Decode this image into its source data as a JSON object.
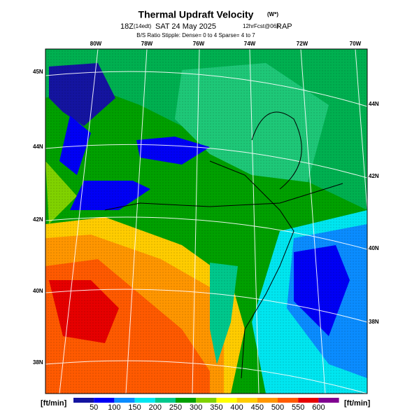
{
  "header": {
    "title": "Thermal Updraft Velocity",
    "unit": "(W*)",
    "run": "18Z",
    "local": "(14edt)",
    "date": "SAT 24 May 2025",
    "fcst": "12hrFcst@06z",
    "model": "RAP",
    "stipple": "B/S Ratio Stipple: Dense= 0 to 4  Sparse= 4 to 7"
  },
  "map": {
    "lon_labels": [
      "80W",
      "78W",
      "76W",
      "74W",
      "72W",
      "70W"
    ],
    "lat_labels_left": [
      "45N",
      "44N",
      "42N",
      "40N",
      "38N"
    ],
    "lat_labels_right": [
      "44N",
      "42N",
      "40N",
      "38N"
    ]
  },
  "legend": {
    "unit_left": "[ft/min]",
    "unit_right": "[ft/min]",
    "ticks": [
      50,
      100,
      150,
      200,
      250,
      300,
      350,
      400,
      450,
      500,
      550,
      600
    ],
    "colors": [
      "#1414a0",
      "#0000f5",
      "#0a8cff",
      "#00e6f0",
      "#00c88c",
      "#00a000",
      "#80d200",
      "#ffff00",
      "#ffcc00",
      "#ff9600",
      "#ff5a00",
      "#e60000",
      "#800090"
    ]
  }
}
